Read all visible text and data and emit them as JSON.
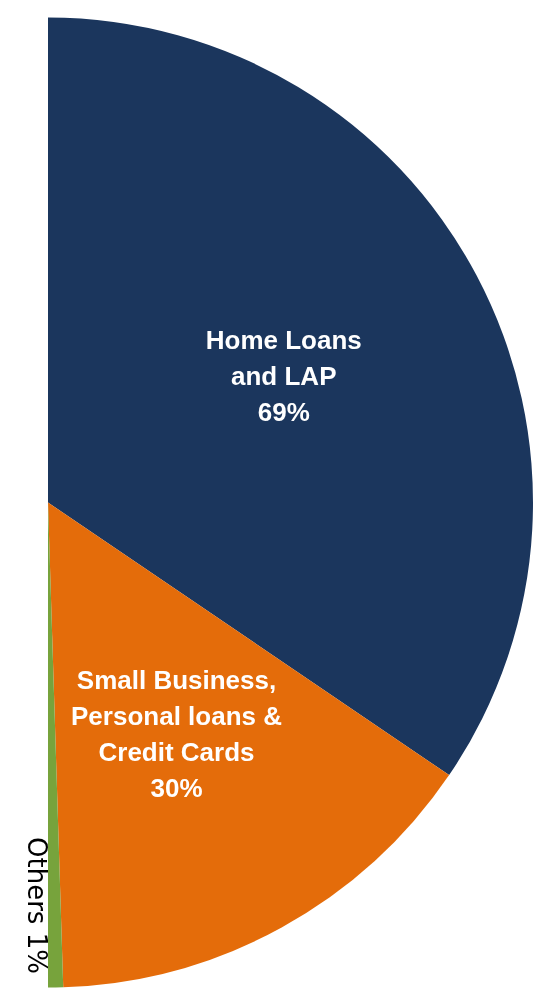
{
  "chart_data": {
    "type": "pie",
    "categories": [
      "Home Loans and LAP",
      "Small Business, Personal loans & Credit Cards",
      "Others"
    ],
    "values": [
      69,
      30,
      1
    ],
    "colors": [
      "#1b365d",
      "#e46c0a",
      "#77a33c"
    ],
    "value_labels": [
      "69%",
      "30%",
      "1%"
    ],
    "legend": false
  }
}
